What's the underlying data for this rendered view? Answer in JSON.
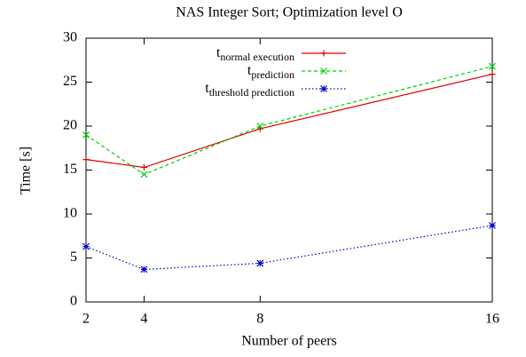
{
  "chart_data": {
    "type": "line",
    "title": "NAS Integer Sort; Optimization level O",
    "xlabel": "Number of peers",
    "ylabel": "Time [s]",
    "x": [
      2,
      4,
      8,
      16
    ],
    "xlim": [
      2,
      16
    ],
    "xticks": [
      2,
      4,
      8,
      16
    ],
    "ylim": [
      0,
      30
    ],
    "yticks": [
      0,
      5,
      10,
      15,
      20,
      25,
      30
    ],
    "legend": "top-right",
    "series": [
      {
        "name": "t",
        "subscript": "normal execution",
        "color": "#e00000",
        "dash": "solid",
        "marker": "plus",
        "values": [
          16.2,
          15.3,
          19.7,
          25.9
        ]
      },
      {
        "name": "t",
        "subscript": "prediction",
        "color": "#00d000",
        "dash": "dashed",
        "marker": "cross",
        "values": [
          19.0,
          14.5,
          20.0,
          26.8
        ]
      },
      {
        "name": "t",
        "subscript": "threshold prediction",
        "color": "#0000d0",
        "dash": "dotted",
        "marker": "star",
        "values": [
          6.3,
          3.7,
          4.4,
          8.7
        ]
      }
    ]
  }
}
